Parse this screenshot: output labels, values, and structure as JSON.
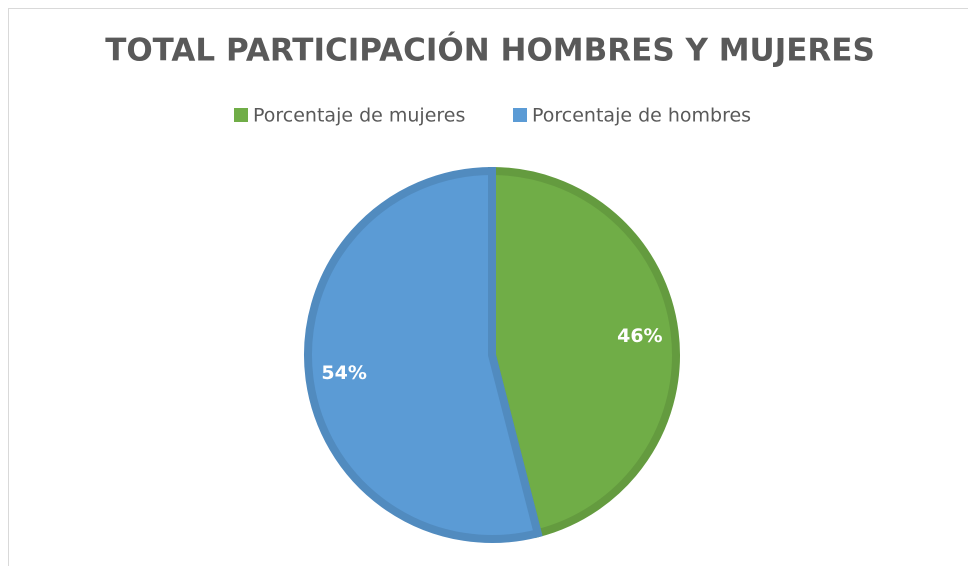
{
  "chart_data": {
    "type": "pie",
    "title": "TOTAL PARTICIPACIÓN HOMBRES Y MUJERES",
    "categories": [
      "Porcentaje de mujeres",
      "Porcentaje de hombres"
    ],
    "values": [
      46,
      54
    ],
    "value_labels": [
      "46%",
      "54%"
    ],
    "colors": [
      "#70ad47",
      "#5b9bd5"
    ],
    "legend": "top"
  }
}
